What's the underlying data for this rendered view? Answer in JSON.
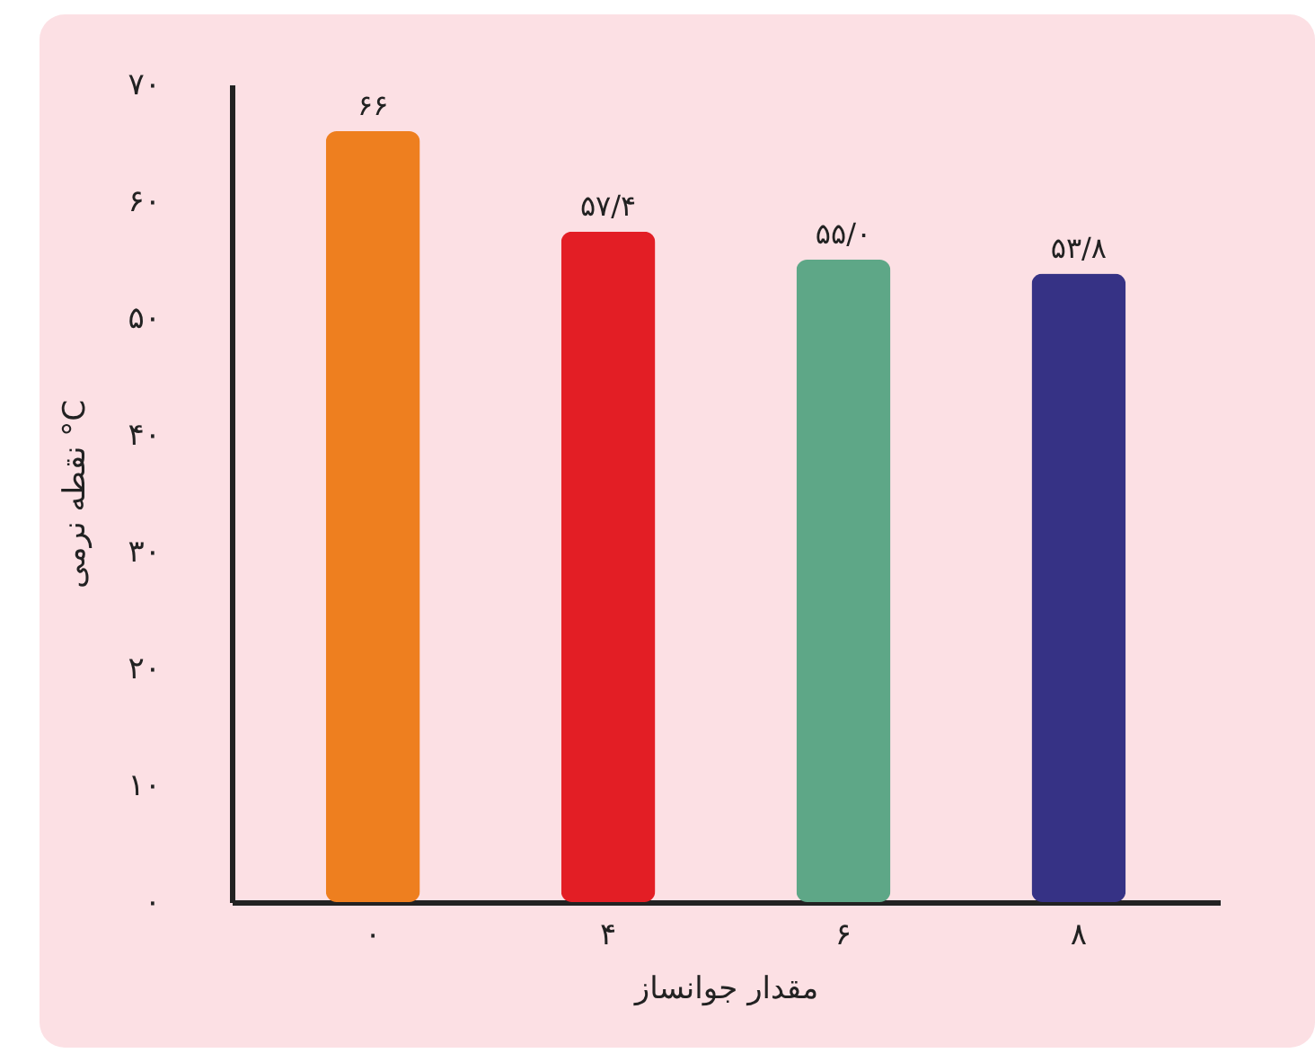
{
  "chart_data": {
    "type": "bar",
    "xlabel": "مقدار جوانساز",
    "ylabel": "نقطه نرمی °C",
    "categories": [
      "۰",
      "۴",
      "۶",
      "۸"
    ],
    "values": [
      66,
      57.4,
      55.0,
      53.8
    ],
    "colors": [
      "#ee7f1f",
      "#e31e25",
      "#5ea787",
      "#363285"
    ],
    "value_labels": [
      "۶۶",
      "۵۷/۴",
      "۵۵/۰",
      "۵۳/۸"
    ],
    "ylim": [
      0,
      70
    ],
    "yticks": [
      {
        "value": 0,
        "label": "۰"
      },
      {
        "value": 10,
        "label": "۱۰"
      },
      {
        "value": 20,
        "label": "۲۰"
      },
      {
        "value": 30,
        "label": "۳۰"
      },
      {
        "value": 40,
        "label": "۴۰"
      },
      {
        "value": 50,
        "label": "۵۰"
      },
      {
        "value": 60,
        "label": "۶۰"
      },
      {
        "value": 70,
        "label": "۷۰"
      }
    ],
    "grid": false,
    "legend": false
  }
}
